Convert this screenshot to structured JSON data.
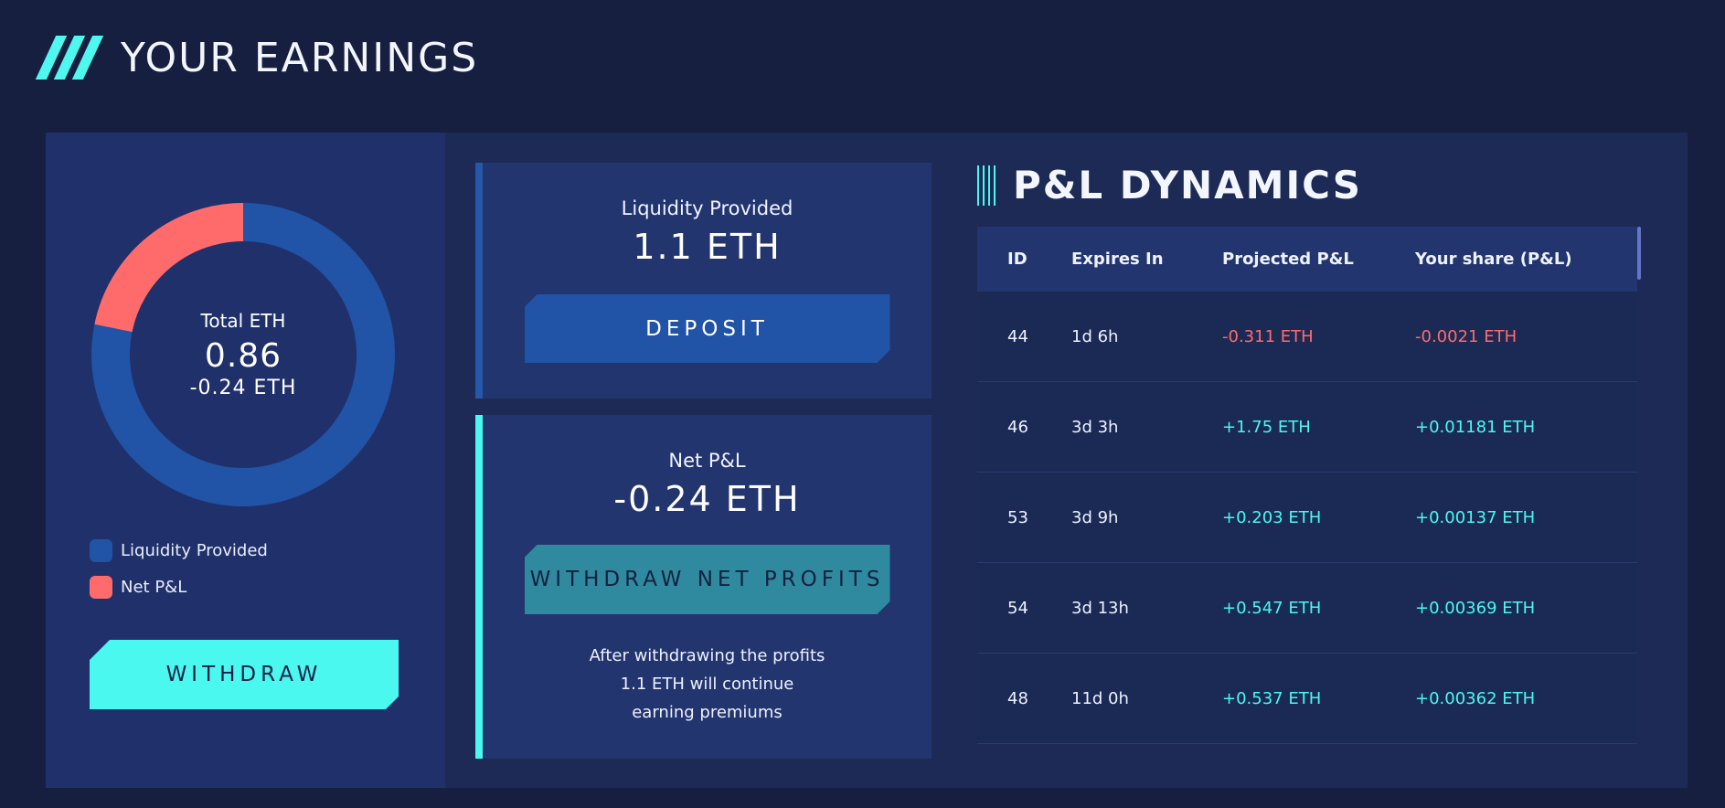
{
  "header": {
    "title": "YOUR EARNINGS"
  },
  "summary": {
    "donut_label": "Total ETH",
    "donut_value": "0.86",
    "donut_sub": "-0.24 ETH",
    "legend": [
      {
        "label": "Liquidity Provided",
        "color": "#2153a6"
      },
      {
        "label": "Net P&L",
        "color": "#ff6b6b"
      }
    ],
    "withdraw_label": "WITHDRAW"
  },
  "chart_data": {
    "type": "pie",
    "title": "",
    "categories": [
      "Liquidity Provided",
      "Net P&L"
    ],
    "values": [
      0.86,
      0.24
    ],
    "colors": [
      "#2153a6",
      "#ff6b6b"
    ]
  },
  "liquidity": {
    "label": "Liquidity Provided",
    "value": "1.1 ETH",
    "deposit_label": "DEPOSIT"
  },
  "net_pl": {
    "label": "Net P&L",
    "value": "-0.24 ETH",
    "withdraw_profits_label": "WITHDRAW NET PROFITS",
    "note": [
      "After withdrawing the profits",
      "1.1 ETH will continue",
      "earning premiums"
    ]
  },
  "pl_dynamics": {
    "title": "P&L DYNAMICS",
    "columns": [
      "ID",
      "Expires In",
      "Projected P&L",
      "Your share (P&L)"
    ],
    "rows": [
      {
        "id": "44",
        "expires": "1d 6h",
        "projected": "-0.311 ETH",
        "share": "-0.0021 ETH",
        "negative": true
      },
      {
        "id": "46",
        "expires": "3d 3h",
        "projected": "+1.75 ETH",
        "share": "+0.01181 ETH",
        "negative": false
      },
      {
        "id": "53",
        "expires": "3d 9h",
        "projected": "+0.203 ETH",
        "share": "+0.00137 ETH",
        "negative": false
      },
      {
        "id": "54",
        "expires": "3d 13h",
        "projected": "+0.547 ETH",
        "share": "+0.00369 ETH",
        "negative": false
      },
      {
        "id": "48",
        "expires": "11d 0h",
        "projected": "+0.537 ETH",
        "share": "+0.00362 ETH",
        "negative": false
      }
    ]
  }
}
